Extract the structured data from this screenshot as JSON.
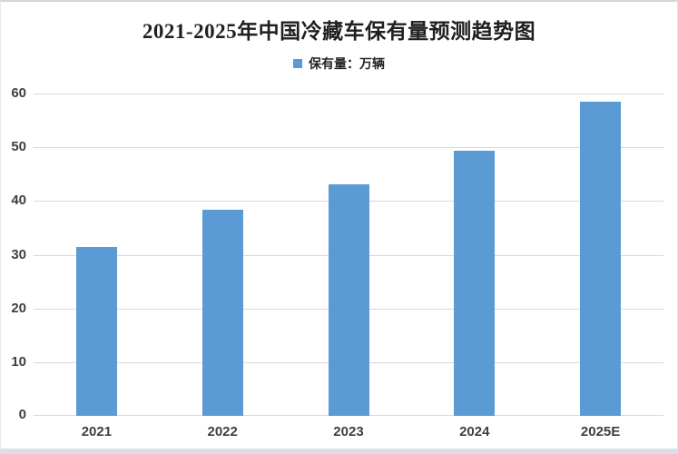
{
  "page": {
    "background": "#ffffff",
    "frame_border_color": "#d6d6d6"
  },
  "chart_data": {
    "type": "bar",
    "title": "2021-2025年中国冷藏车保有量预测趋势图",
    "legend": [
      {
        "label": "保有量：万辆",
        "color": "#5B9BD5"
      }
    ],
    "legend_position": "top-center",
    "categories": [
      "2021",
      "2022",
      "2023",
      "2024",
      "2025E"
    ],
    "series": [
      {
        "name": "保有量：万辆",
        "values": [
          31.4,
          38.3,
          43.1,
          49.4,
          58.4
        ]
      }
    ],
    "xlabel": "",
    "ylabel": "",
    "ylim": [
      0,
      60
    ],
    "yticks": [
      0,
      10,
      20,
      30,
      40,
      50,
      60
    ],
    "grid": true,
    "colors": {
      "bar": "#5B9BD5",
      "gridline": "#d9d9d9",
      "tick_label": "#3f3f3f",
      "title": "#1f1f1f"
    }
  }
}
